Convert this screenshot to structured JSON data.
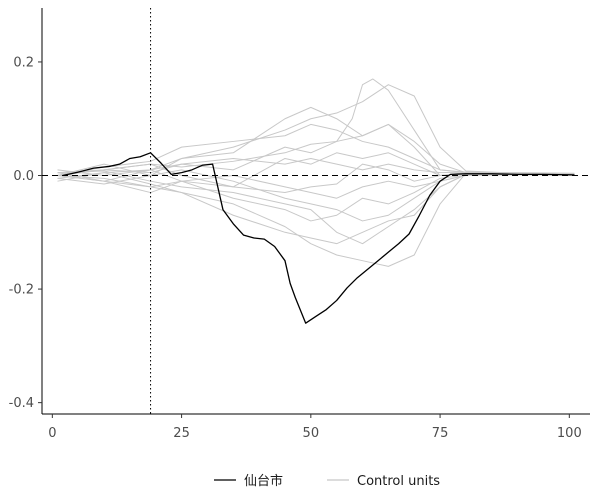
{
  "chart_data": {
    "type": "line",
    "title": "",
    "xlabel": "",
    "ylabel": "",
    "xlim": [
      -2,
      104
    ],
    "ylim": [
      -0.42,
      0.295
    ],
    "x_ticks": [
      0,
      25,
      50,
      75,
      100
    ],
    "x_tick_labels": [
      "0",
      "25",
      "50",
      "75",
      "100"
    ],
    "y_ticks": [
      0.2,
      0.0,
      -0.2,
      -0.4
    ],
    "y_tick_labels": [
      "0.2",
      "0.0",
      "-0.2",
      "-0.4"
    ],
    "grid": false,
    "legend_position": "bottom",
    "reference_lines": {
      "horizontal_dashed_y": 0.0,
      "vertical_dotted_x": 19
    },
    "colors": {
      "treated": "#000000",
      "control": "#c8c8c8"
    },
    "series": [
      {
        "name": "仙台市",
        "role": "treated",
        "x": [
          2,
          5,
          8,
          11,
          13,
          15,
          17,
          19,
          21,
          23,
          25,
          27,
          29,
          31,
          33,
          35,
          37,
          39,
          41,
          43,
          45,
          46,
          47,
          49,
          51,
          53,
          55,
          57,
          59,
          61,
          63,
          65,
          67,
          69,
          71,
          73,
          75,
          77,
          80,
          85,
          90,
          95,
          101
        ],
        "values": [
          0.0,
          0.006,
          0.013,
          0.016,
          0.02,
          0.03,
          0.033,
          0.04,
          0.022,
          0.002,
          0.005,
          0.01,
          0.018,
          0.02,
          -0.06,
          -0.085,
          -0.105,
          -0.11,
          -0.112,
          -0.125,
          -0.15,
          -0.19,
          -0.215,
          -0.26,
          -0.248,
          -0.236,
          -0.22,
          -0.198,
          -0.18,
          -0.165,
          -0.15,
          -0.135,
          -0.12,
          -0.103,
          -0.07,
          -0.035,
          -0.01,
          0.002,
          0.003,
          0.003,
          0.002,
          0.002,
          0.001
        ]
      },
      {
        "role": "control",
        "x": [
          1,
          10,
          19,
          25,
          35,
          45,
          50,
          55,
          60,
          65,
          70,
          75,
          80,
          90,
          101
        ],
        "values": [
          0.0,
          0.01,
          0.02,
          0.015,
          0.025,
          0.04,
          0.055,
          0.06,
          0.07,
          0.09,
          0.05,
          0.0,
          0.005,
          0.004,
          0.003
        ]
      },
      {
        "role": "control",
        "x": [
          1,
          10,
          19,
          25,
          35,
          45,
          50,
          55,
          60,
          65,
          70,
          75,
          80,
          90,
          101
        ],
        "values": [
          0.005,
          -0.01,
          -0.02,
          -0.01,
          -0.02,
          -0.03,
          -0.02,
          -0.015,
          0.02,
          0.01,
          -0.01,
          0.0,
          0.003,
          0.002,
          0.001
        ]
      },
      {
        "role": "control",
        "x": [
          1,
          10,
          19,
          25,
          35,
          45,
          50,
          55,
          60,
          65,
          70,
          75,
          80,
          90,
          101
        ],
        "values": [
          -0.01,
          0.005,
          0.01,
          0.03,
          0.05,
          0.08,
          0.1,
          0.11,
          0.13,
          0.16,
          0.14,
          0.05,
          0.008,
          0.004,
          0.002
        ]
      },
      {
        "role": "control",
        "x": [
          1,
          10,
          19,
          25,
          35,
          45,
          50,
          55,
          60,
          65,
          70,
          75,
          80,
          90,
          101
        ],
        "values": [
          0.0,
          -0.005,
          -0.02,
          -0.03,
          -0.05,
          -0.09,
          -0.12,
          -0.14,
          -0.15,
          -0.16,
          -0.14,
          -0.05,
          0.004,
          0.003,
          0.002
        ]
      },
      {
        "role": "control",
        "x": [
          1,
          10,
          19,
          25,
          35,
          45,
          50,
          55,
          58,
          60,
          62,
          65,
          70,
          75,
          80,
          90,
          101
        ],
        "values": [
          0.0,
          0.01,
          0.005,
          0.02,
          0.01,
          0.05,
          0.04,
          0.06,
          0.1,
          0.16,
          0.17,
          0.15,
          0.08,
          0.01,
          0.006,
          0.004,
          0.003
        ]
      },
      {
        "role": "control",
        "x": [
          1,
          10,
          19,
          25,
          35,
          45,
          50,
          55,
          60,
          65,
          70,
          75,
          80,
          90,
          101
        ],
        "values": [
          0.005,
          0.008,
          -0.01,
          -0.02,
          -0.03,
          -0.05,
          -0.06,
          -0.1,
          -0.12,
          -0.09,
          -0.06,
          -0.02,
          0.002,
          0.002,
          0.001
        ]
      },
      {
        "role": "control",
        "x": [
          1,
          10,
          19,
          25,
          35,
          45,
          50,
          55,
          60,
          65,
          70,
          75,
          80,
          90,
          101
        ],
        "values": [
          0.0,
          0.015,
          0.025,
          0.05,
          0.06,
          0.07,
          0.09,
          0.08,
          0.06,
          0.05,
          0.03,
          0.01,
          0.005,
          0.004,
          0.002
        ]
      },
      {
        "role": "control",
        "x": [
          1,
          10,
          19,
          25,
          35,
          45,
          50,
          55,
          60,
          65,
          70,
          75,
          80,
          90,
          101
        ],
        "values": [
          0.0,
          -0.01,
          -0.03,
          -0.01,
          -0.04,
          -0.06,
          -0.08,
          -0.07,
          -0.04,
          -0.05,
          -0.03,
          -0.005,
          0.001,
          0.002,
          0.001
        ]
      },
      {
        "role": "control",
        "x": [
          1,
          10,
          19,
          25,
          35,
          45,
          50,
          55,
          60,
          65,
          70,
          75,
          80,
          90,
          101
        ],
        "values": [
          0.01,
          0.0,
          0.01,
          0.02,
          0.03,
          0.02,
          0.03,
          0.02,
          0.01,
          0.02,
          0.01,
          0.005,
          0.006,
          0.005,
          0.004
        ]
      },
      {
        "role": "control",
        "x": [
          1,
          10,
          19,
          25,
          35,
          45,
          50,
          55,
          60,
          65,
          70,
          75,
          80,
          90,
          101
        ],
        "values": [
          -0.005,
          0.005,
          -0.015,
          -0.03,
          -0.07,
          -0.1,
          -0.11,
          -0.12,
          -0.1,
          -0.08,
          -0.07,
          -0.02,
          0.002,
          0.002,
          0.001
        ]
      },
      {
        "role": "control",
        "x": [
          1,
          10,
          19,
          25,
          35,
          45,
          50,
          55,
          60,
          65,
          70,
          75,
          80,
          90,
          101
        ],
        "values": [
          0.0,
          0.02,
          0.0,
          0.03,
          0.04,
          0.1,
          0.12,
          0.1,
          0.07,
          0.09,
          0.06,
          0.02,
          0.005,
          0.003,
          0.002
        ]
      },
      {
        "role": "control",
        "x": [
          1,
          10,
          19,
          25,
          35,
          45,
          50,
          55,
          60,
          65,
          70,
          75,
          80,
          90,
          101
        ],
        "values": [
          0.0,
          -0.01,
          0.01,
          -0.01,
          0.0,
          -0.02,
          -0.03,
          -0.04,
          -0.02,
          -0.01,
          -0.02,
          -0.01,
          0.0,
          0.001,
          0.001
        ]
      },
      {
        "role": "control",
        "x": [
          1,
          10,
          19,
          25,
          35,
          45,
          50,
          55,
          60,
          65,
          70,
          75,
          80,
          90,
          101
        ],
        "values": [
          0.005,
          0.01,
          0.02,
          0.0,
          -0.02,
          0.03,
          0.02,
          0.04,
          0.03,
          0.04,
          0.02,
          0.0,
          0.004,
          0.003,
          0.002
        ]
      },
      {
        "role": "control",
        "x": [
          1,
          10,
          19,
          25,
          35,
          45,
          50,
          55,
          60,
          65,
          70,
          75,
          80,
          90,
          101
        ],
        "values": [
          -0.005,
          -0.015,
          0.0,
          0.01,
          -0.01,
          -0.04,
          -0.05,
          -0.06,
          -0.08,
          -0.07,
          -0.04,
          -0.01,
          0.001,
          0.002,
          0.001
        ]
      }
    ]
  }
}
